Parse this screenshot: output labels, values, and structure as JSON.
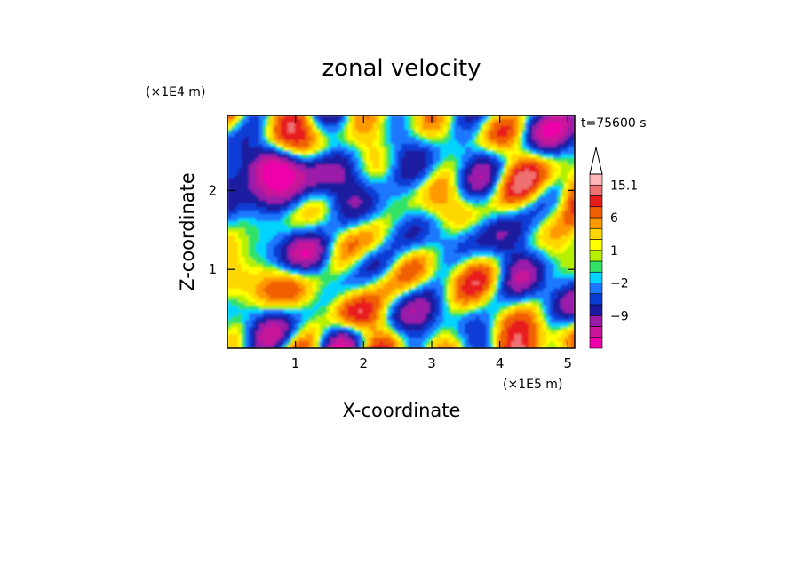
{
  "chart_data": {
    "type": "heatmap",
    "title": "zonal velocity",
    "xlabel": "X-coordinate",
    "ylabel": "Z-coordinate",
    "x_scale_label": "(×1E5 m)",
    "y_scale_label": "(×1E4 m)",
    "time_label": "t=75600 s",
    "xlim": [
      0,
      5.1
    ],
    "ylim": [
      0,
      2.95
    ],
    "x_ticks": [
      {
        "value": 1,
        "label": "1"
      },
      {
        "value": 2,
        "label": "2"
      },
      {
        "value": 3,
        "label": "3"
      },
      {
        "value": 4,
        "label": "4"
      },
      {
        "value": 5,
        "label": "5"
      }
    ],
    "y_ticks": [
      {
        "value": 1,
        "label": "1"
      },
      {
        "value": 2,
        "label": "2"
      }
    ],
    "colorbar": {
      "levels": [
        -15,
        -12,
        -9,
        -6,
        -4,
        -2,
        -1,
        0,
        1,
        2,
        4,
        6,
        9,
        12,
        15.1
      ],
      "colors": [
        "#ee00aa",
        "#c8149a",
        "#9a1aa8",
        "#1a1aa0",
        "#0a3cd6",
        "#1e78ff",
        "#00d4ff",
        "#33e266",
        "#b4f000",
        "#ffff00",
        "#ffd700",
        "#ff9900",
        "#f06000",
        "#e81c1c",
        "#ee7070",
        "#ffb6b6"
      ],
      "labels": [
        {
          "value": 15.1,
          "label": "15.1"
        },
        {
          "value": 6,
          "label": "6"
        },
        {
          "value": 1,
          "label": "1"
        },
        {
          "value": -2,
          "label": "−2"
        },
        {
          "value": -9,
          "label": "−9"
        }
      ],
      "extend": "max"
    },
    "field_description_samples": {
      "features": [
        {
          "x": 0.75,
          "z": 2.35,
          "value": -8
        },
        {
          "x": 1.25,
          "z": 1.15,
          "value": -7
        },
        {
          "x": 1.3,
          "z": 2.25,
          "value": -4
        },
        {
          "x": 2.25,
          "z": 1.35,
          "value": 5
        },
        {
          "x": 3.8,
          "z": 2.25,
          "value": 4
        },
        {
          "x": 3.4,
          "z": 1.1,
          "value": 2
        },
        {
          "x": 4.9,
          "z": 0.2,
          "value": 6
        },
        {
          "x": 1.9,
          "z": 0.4,
          "value": 8
        },
        {
          "x": 4.5,
          "z": 2.8,
          "value": -3
        },
        {
          "x": 0.2,
          "z": 0.5,
          "value": -3
        }
      ]
    }
  }
}
